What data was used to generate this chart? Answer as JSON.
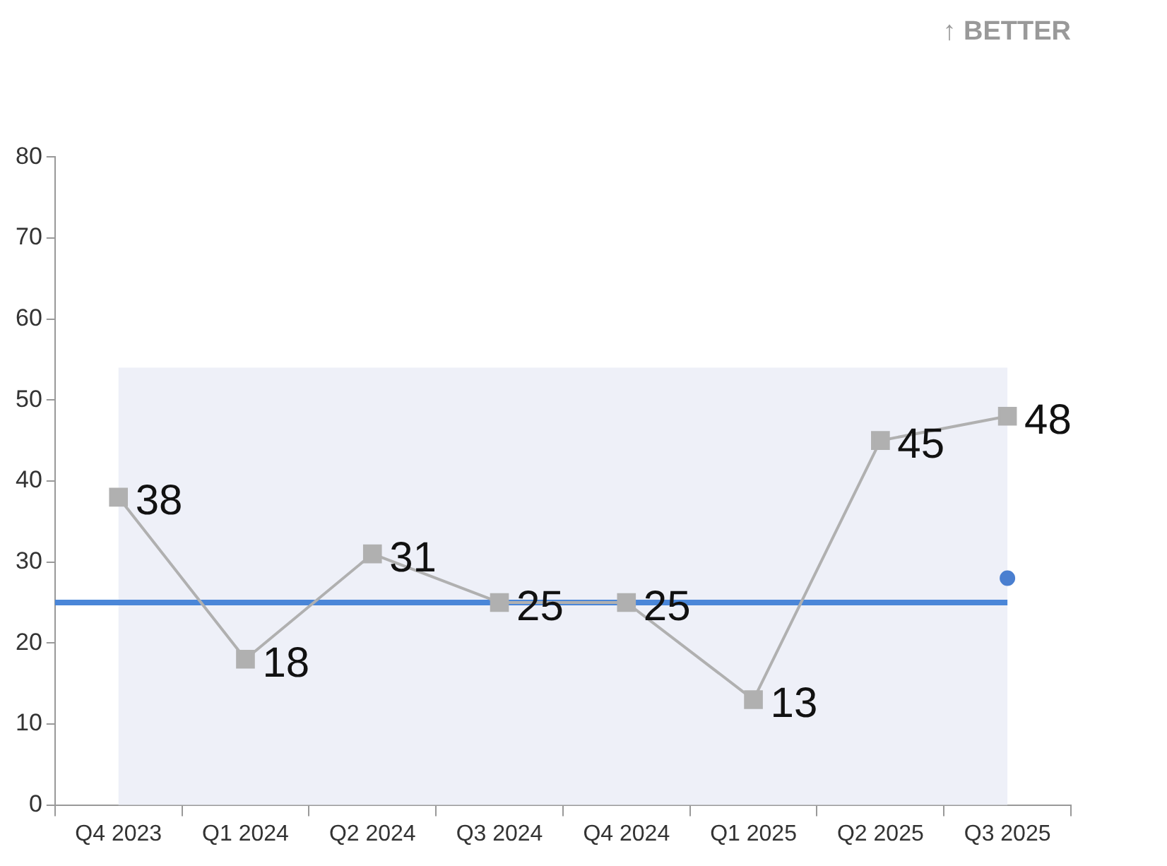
{
  "chart_data": {
    "type": "line",
    "annotations": [
      "↑ BETTER"
    ],
    "categories": [
      "Q4 2023",
      "Q1 2024",
      "Q2 2024",
      "Q3 2024",
      "Q4 2024",
      "Q1 2025",
      "Q2 2025",
      "Q3 2025"
    ],
    "series": [
      {
        "color": "#b0b0b0",
        "values": [
          38,
          18,
          31,
          25,
          25,
          13,
          45,
          48
        ],
        "value_labels": [
          "38",
          "18",
          "31",
          "25",
          "25",
          "13",
          "45",
          "48"
        ],
        "marker": "square"
      },
      {
        "type": "scatter",
        "color": "#4a7fd0",
        "x": [
          "Q3 2025"
        ],
        "values": [
          28
        ],
        "marker": "circle"
      }
    ],
    "ylim": [
      0,
      80
    ],
    "yticks": [
      0,
      10,
      20,
      30,
      40,
      50,
      60,
      70,
      80
    ],
    "grid": false,
    "legend": false,
    "ref_lines": [
      {
        "axis": "y",
        "value": 25,
        "color": "#4a86d8"
      }
    ],
    "bands": [
      {
        "axis": "y",
        "from": 0,
        "to": 54,
        "color": "#eef0f8"
      }
    ]
  }
}
